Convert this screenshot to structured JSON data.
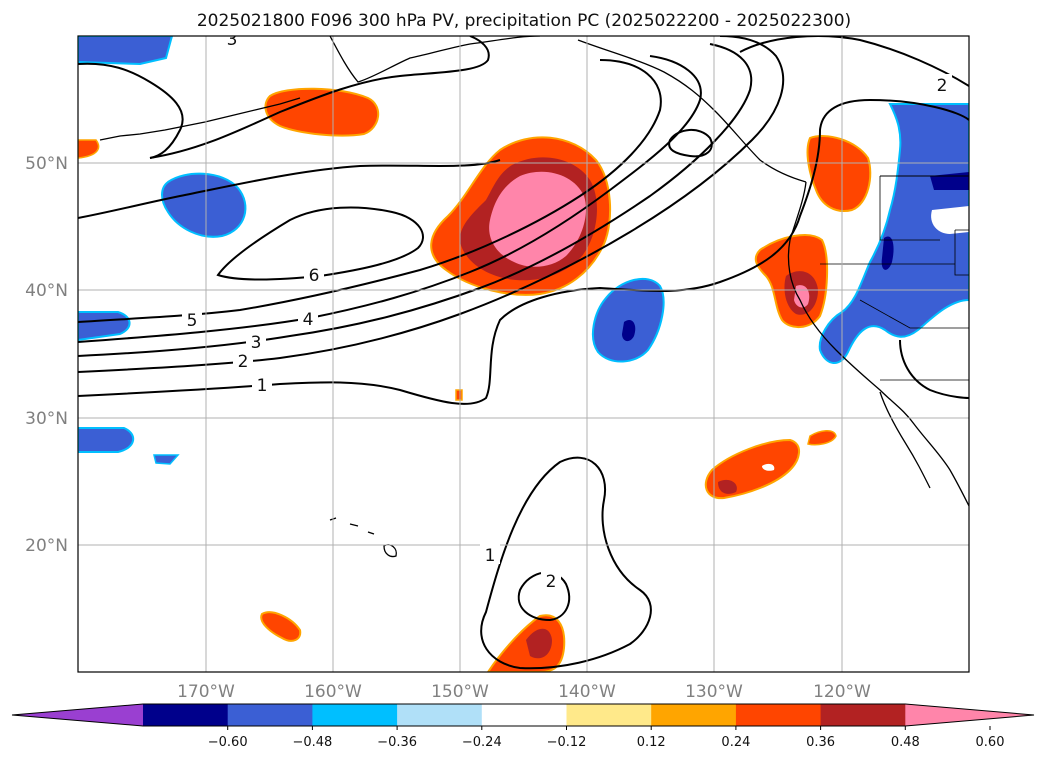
{
  "chart_data": {
    "type": "map-contour",
    "title": "2025021800 F096 300 hPa PV, precipitation PC (2025022200 - 2025022300)",
    "lat_ticks": [
      "20°N",
      "30°N",
      "40°N",
      "50°N"
    ],
    "lon_ticks": [
      "170°W",
      "160°W",
      "150°W",
      "140°W",
      "130°W",
      "120°W"
    ],
    "extent": {
      "lon": [
        -180,
        -110
      ],
      "lat": [
        10,
        60
      ]
    },
    "pv_contour_labels": [
      "6",
      "5",
      "4",
      "3",
      "2",
      "1",
      "1",
      "2",
      "2",
      "3"
    ],
    "colorbar": {
      "ticks": [
        "−0.60",
        "−0.48",
        "−0.36",
        "−0.24",
        "−0.12",
        "0.12",
        "0.24",
        "0.36",
        "0.48",
        "0.60"
      ],
      "colors": [
        "#9a3fd1",
        "#00008b",
        "#3b5fd4",
        "#00bfff",
        "#b0e0f8",
        "#ffffff",
        "#ffe98a",
        "#ffa500",
        "#ff4500",
        "#b22222",
        "#ff85aa"
      ]
    },
    "colors": {
      "strong_neg": "#00008b",
      "neg": "#3b5fd4",
      "weak_neg": "#00bfff",
      "faint_neg": "#b0e0f8",
      "faint_pos": "#ffe98a",
      "weak_pos": "#ffa500",
      "pos": "#ff4500",
      "strong_pos": "#b22222",
      "max_pos": "#ff85aa",
      "grid": "#b0b0b0",
      "contour": "#000000"
    }
  }
}
